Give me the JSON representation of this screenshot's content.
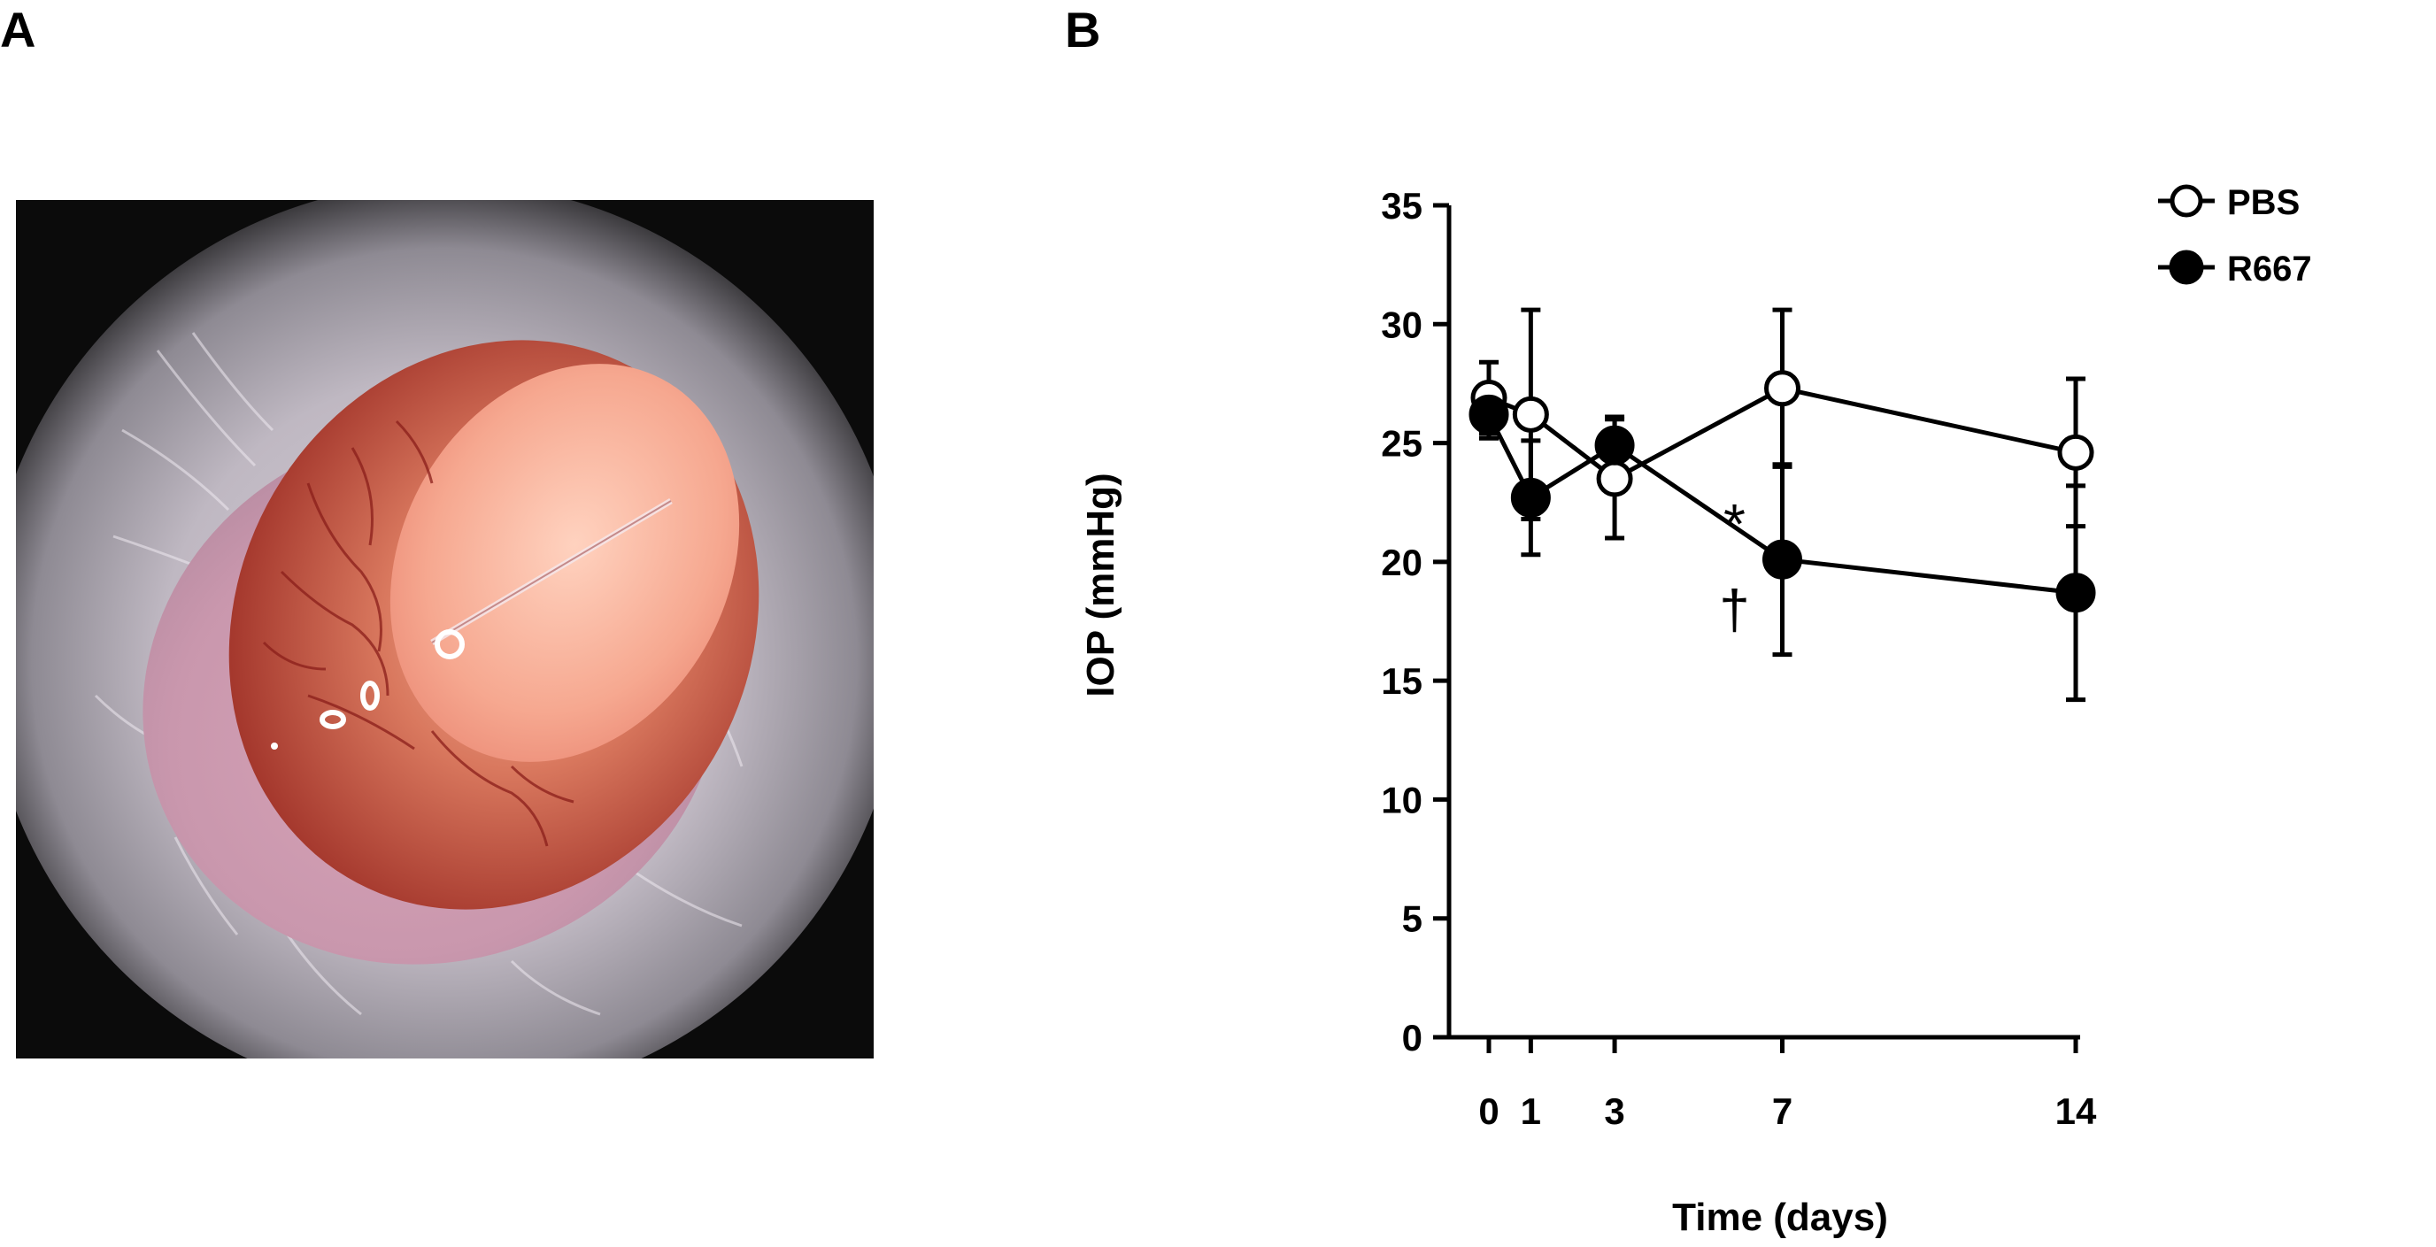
{
  "panels": {
    "a_label": "A",
    "b_label": "B"
  },
  "photo": {
    "subject": "eye-photograph"
  },
  "chart_data": {
    "type": "line",
    "x": [
      0,
      1,
      3,
      7,
      14
    ],
    "xticks": [
      "0",
      "1",
      "3",
      "7",
      "14"
    ],
    "yticks": [
      "0",
      "5",
      "10",
      "15",
      "20",
      "25",
      "30",
      "35"
    ],
    "xlabel": "Time (days)",
    "ylabel": "IOP (mmHg)",
    "ylim": [
      0,
      35
    ],
    "legend_position": "top-right",
    "grid": false,
    "series": [
      {
        "name": "PBS",
        "marker": "open-circle",
        "color": "#000000",
        "values": [
          26.9,
          26.2,
          23.5,
          27.3,
          24.6
        ],
        "errors": [
          1.5,
          4.4,
          2.5,
          3.3,
          3.1
        ]
      },
      {
        "name": "R667",
        "marker": "filled-circle",
        "color": "#000000",
        "values": [
          26.2,
          22.7,
          24.9,
          20.1,
          18.7
        ],
        "errors": [
          1.0,
          2.4,
          1.2,
          4.0,
          4.5
        ]
      }
    ],
    "annotations": [
      {
        "text": "*",
        "x": 7,
        "series": "R667"
      },
      {
        "text": "†",
        "x": 7,
        "series": "R667"
      }
    ]
  }
}
